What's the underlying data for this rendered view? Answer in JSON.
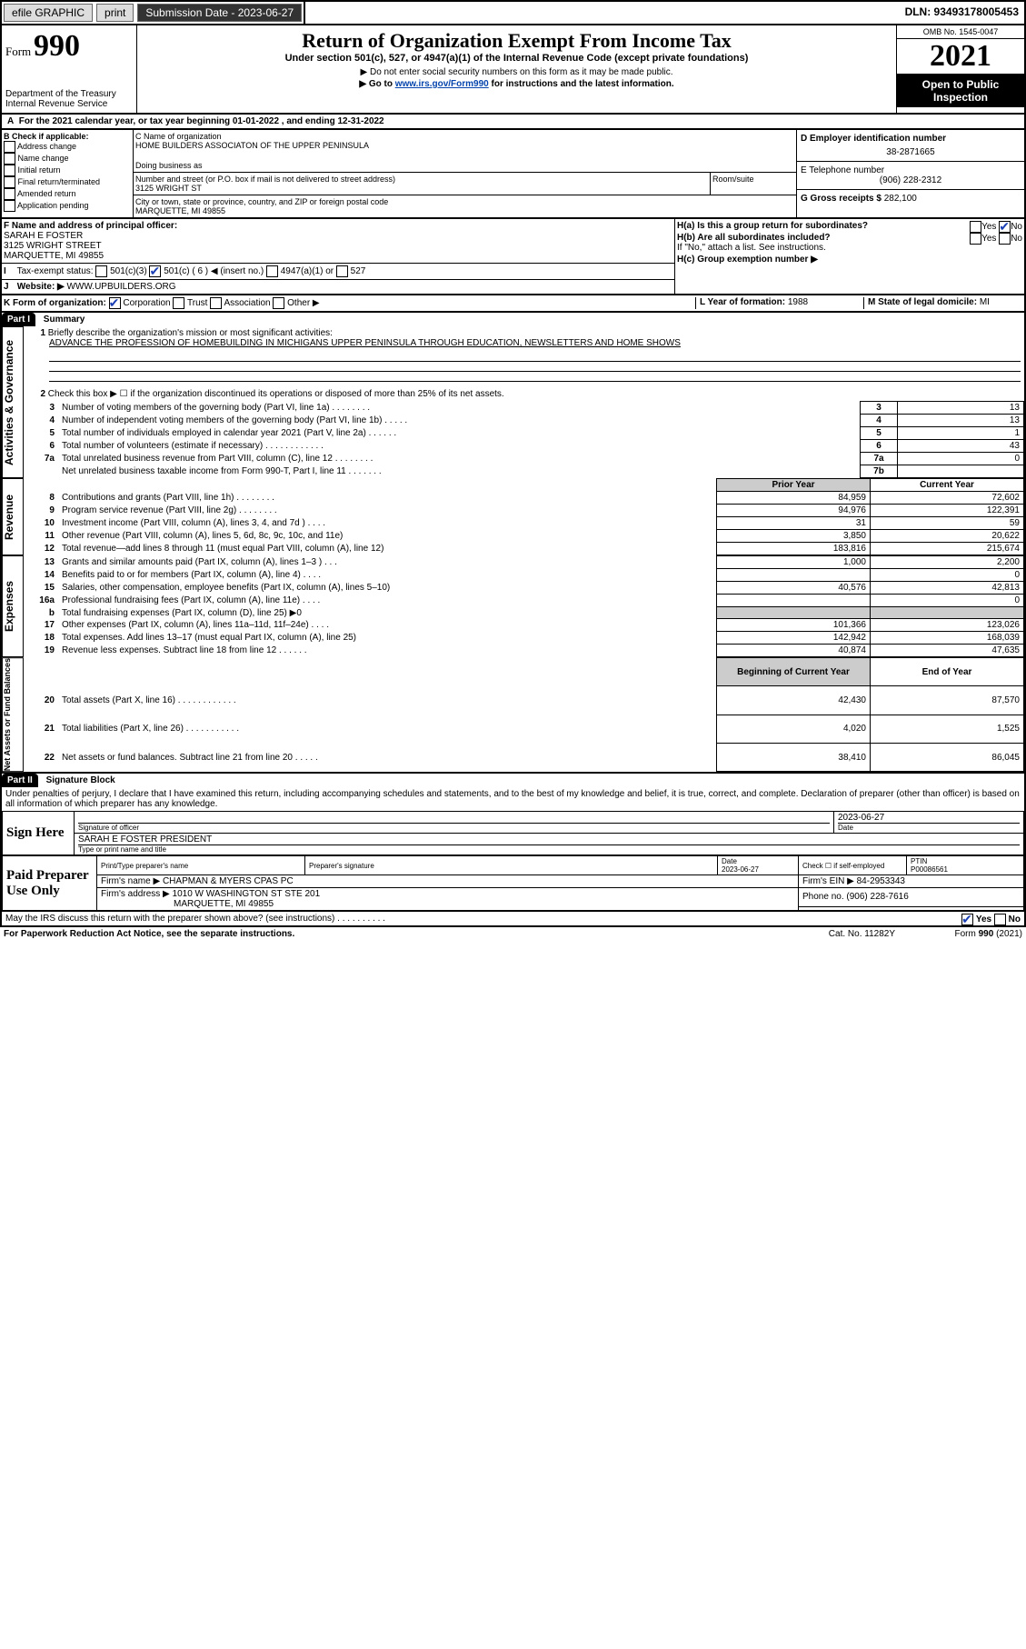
{
  "topbar": {
    "efile_label": "efile GRAPHIC",
    "print_label": "print",
    "submission_label": "Submission Date - 2023-06-27",
    "dln_label": "DLN: 93493178005453"
  },
  "header": {
    "form_word": "Form",
    "form_number": "990",
    "title": "Return of Organization Exempt From Income Tax",
    "subtitle": "Under section 501(c), 527, or 4947(a)(1) of the Internal Revenue Code (except private foundations)",
    "note1": "▶ Do not enter social security numbers on this form as it may be made public.",
    "note2_prefix": "▶ Go to ",
    "note2_link": "www.irs.gov/Form990",
    "note2_suffix": " for instructions and the latest information.",
    "dept1": "Department of the Treasury",
    "dept2": "Internal Revenue Service",
    "omb_label": "OMB No. 1545-0047",
    "year": "2021",
    "open": "Open to Public Inspection"
  },
  "lineA": "For the 2021 calendar year, or tax year beginning 01-01-2022  , and ending 12-31-2022",
  "boxB": {
    "title": "B Check if applicable:",
    "items": [
      "Address change",
      "Name change",
      "Initial return",
      "Final return/terminated",
      "Amended return",
      "Application pending"
    ]
  },
  "boxC": {
    "label_c": "C Name of organization",
    "org_name": "HOME BUILDERS ASSOCIATON OF THE UPPER PENINSULA",
    "dba_label": "Doing business as",
    "street_label": "Number and street (or P.O. box if mail is not delivered to street address)",
    "room_label": "Room/suite",
    "street": "3125 WRIGHT ST",
    "city_label": "City or town, state or province, country, and ZIP or foreign postal code",
    "city": "MARQUETTE, MI  49855"
  },
  "boxD": {
    "label": "D Employer identification number",
    "value": "38-2871665"
  },
  "boxE": {
    "label": "E Telephone number",
    "value": "(906) 228-2312"
  },
  "boxG": {
    "label": "G Gross receipts $",
    "value": "282,100"
  },
  "boxF": {
    "label": "F Name and address of principal officer:",
    "line1": "SARAH E FOSTER",
    "line2": "3125 WRIGHT STREET",
    "line3": "MARQUETTE, MI  49855"
  },
  "boxH": {
    "ha": "H(a)  Is this a group return for subordinates?",
    "hb": "H(b)  Are all subordinates included?",
    "hb_note": "If \"No,\" attach a list. See instructions.",
    "hc": "H(c)  Group exemption number ▶",
    "yes": "Yes",
    "no": "No",
    "ha_answer_no": true
  },
  "lineI": {
    "label": "Tax-exempt status:",
    "c3": "501(c)(3)",
    "c": "501(c) ( 6 ) ◀ (insert no.)",
    "a1": "4947(a)(1) or",
    "s527": "527",
    "c_checked": true
  },
  "lineJ": {
    "label": "Website: ▶",
    "value": "WWW.UPBUILDERS.ORG"
  },
  "lineK": {
    "label": "K Form of organization:",
    "corp": "Corporation",
    "trust": "Trust",
    "assoc": "Association",
    "other": "Other ▶",
    "corp_checked": true
  },
  "lineL": {
    "label": "L Year of formation:",
    "value": "1988"
  },
  "lineM": {
    "label": "M State of legal domicile:",
    "value": "MI"
  },
  "partI": {
    "label": "Part I",
    "title": "Summary",
    "q1_label": "Briefly describe the organization's mission or most significant activities:",
    "q1_text": "ADVANCE THE PROFESSION OF HOMEBUILDING IN MICHIGANS UPPER PENINSULA THROUGH EDUCATION, NEWSLETTERS AND HOME SHOWS",
    "q2": "Check this box ▶ ☐  if the organization discontinued its operations or disposed of more than 25% of its net assets.",
    "sideA": "Activities & Governance",
    "sideR": "Revenue",
    "sideE": "Expenses",
    "sideN": "Net Assets or Fund Balances",
    "prior_year": "Prior Year",
    "current_year": "Current Year",
    "boc": "Beginning of Current Year",
    "eoy": "End of Year",
    "rows_gov": [
      {
        "n": "3",
        "t": "Number of voting members of the governing body (Part VI, line 1a)  .    .    .    .    .    .    .    .",
        "r": "3",
        "v": "13"
      },
      {
        "n": "4",
        "t": "Number of independent voting members of the governing body (Part VI, line 1b)  .    .    .    .    .",
        "r": "4",
        "v": "13"
      },
      {
        "n": "5",
        "t": "Total number of individuals employed in calendar year 2021 (Part V, line 2a)  .    .    .    .    .    .",
        "r": "5",
        "v": "1"
      },
      {
        "n": "6",
        "t": "Total number of volunteers (estimate if necessary)  .    .    .    .    .    .    .    .    .    .    .    .",
        "r": "6",
        "v": "43"
      },
      {
        "n": "7a",
        "t": "Total unrelated business revenue from Part VIII, column (C), line 12  .    .    .    .    .    .    .    .",
        "r": "7a",
        "v": "0"
      },
      {
        "n": "",
        "t": "Net unrelated business taxable income from Form 990-T, Part I, line 11  .    .    .    .    .    .    .",
        "r": "7b",
        "v": ""
      }
    ],
    "rows_rev": [
      {
        "n": "8",
        "t": "Contributions and grants (Part VIII, line 1h)  .    .    .    .    .    .    .    .",
        "p": "84,959",
        "c": "72,602"
      },
      {
        "n": "9",
        "t": "Program service revenue (Part VIII, line 2g)  .    .    .    .    .    .    .    .",
        "p": "94,976",
        "c": "122,391"
      },
      {
        "n": "10",
        "t": "Investment income (Part VIII, column (A), lines 3, 4, and 7d )  .    .    .    .",
        "p": "31",
        "c": "59"
      },
      {
        "n": "11",
        "t": "Other revenue (Part VIII, column (A), lines 5, 6d, 8c, 9c, 10c, and 11e)",
        "p": "3,850",
        "c": "20,622"
      },
      {
        "n": "12",
        "t": "Total revenue—add lines 8 through 11 (must equal Part VIII, column (A), line 12)",
        "p": "183,816",
        "c": "215,674"
      }
    ],
    "rows_exp": [
      {
        "n": "13",
        "t": "Grants and similar amounts paid (Part IX, column (A), lines 1–3 )  .    .    .",
        "p": "1,000",
        "c": "2,200"
      },
      {
        "n": "14",
        "t": "Benefits paid to or for members (Part IX, column (A), line 4)  .    .    .    .",
        "p": "",
        "c": "0"
      },
      {
        "n": "15",
        "t": "Salaries, other compensation, employee benefits (Part IX, column (A), lines 5–10)",
        "p": "40,576",
        "c": "42,813"
      },
      {
        "n": "16a",
        "t": "Professional fundraising fees (Part IX, column (A), line 11e)  .    .    .    .",
        "p": "",
        "c": "0"
      },
      {
        "n": "b",
        "t": "Total fundraising expenses (Part IX, column (D), line 25) ▶0",
        "p": "__shade__",
        "c": "__shade__"
      },
      {
        "n": "17",
        "t": "Other expenses (Part IX, column (A), lines 11a–11d, 11f–24e)  .    .    .    .",
        "p": "101,366",
        "c": "123,026"
      },
      {
        "n": "18",
        "t": "Total expenses. Add lines 13–17 (must equal Part IX, column (A), line 25)",
        "p": "142,942",
        "c": "168,039"
      },
      {
        "n": "19",
        "t": "Revenue less expenses. Subtract line 18 from line 12  .    .    .    .    .    .",
        "p": "40,874",
        "c": "47,635"
      }
    ],
    "rows_net": [
      {
        "n": "20",
        "t": "Total assets (Part X, line 16)  .    .    .    .    .    .    .    .    .    .    .    .",
        "p": "42,430",
        "c": "87,570"
      },
      {
        "n": "21",
        "t": "Total liabilities (Part X, line 26)  .    .    .    .    .    .    .    .    .    .    .",
        "p": "4,020",
        "c": "1,525"
      },
      {
        "n": "22",
        "t": "Net assets or fund balances. Subtract line 21 from line 20  .    .    .    .    .",
        "p": "38,410",
        "c": "86,045"
      }
    ]
  },
  "partII": {
    "label": "Part II",
    "title": "Signature Block",
    "perjury": "Under penalties of perjury, I declare that I have examined this return, including accompanying schedules and statements, and to the best of my knowledge and belief, it is true, correct, and complete. Declaration of preparer (other than officer) is based on all information of which preparer has any knowledge.",
    "sign_here": "Sign Here",
    "sig_officer": "Signature of officer",
    "date_label": "Date",
    "sign_date": "2023-06-27",
    "officer_name": "SARAH E FOSTER  PRESIDENT",
    "name_title_label": "Type or print name and title",
    "paid": "Paid Preparer Use Only",
    "prep_name_label": "Print/Type preparer's name",
    "prep_sig_label": "Preparer's signature",
    "prep_date_label": "Date",
    "prep_date": "2023-06-27",
    "check_if": "Check ☐ if self-employed",
    "ptin_label": "PTIN",
    "ptin": "P00086561",
    "firm_name_label": "Firm's name   ▶",
    "firm_name": "CHAPMAN & MYERS CPAS PC",
    "firm_ein_label": "Firm's EIN ▶",
    "firm_ein": "84-2953343",
    "firm_addr_label": "Firm's address ▶",
    "firm_addr1": "1010 W WASHINGTON ST STE 201",
    "firm_addr2": "MARQUETTE, MI  49855",
    "phone_label": "Phone no.",
    "phone": "(906) 228-7616",
    "discuss": "May the IRS discuss this return with the preparer shown above? (see instructions)   .    .    .    .    .    .    .    .    .    .",
    "discuss_yes": true
  },
  "footer": {
    "left": "For Paperwork Reduction Act Notice, see the separate instructions.",
    "mid": "Cat. No. 11282Y",
    "right": "Form 990 (2021)"
  }
}
